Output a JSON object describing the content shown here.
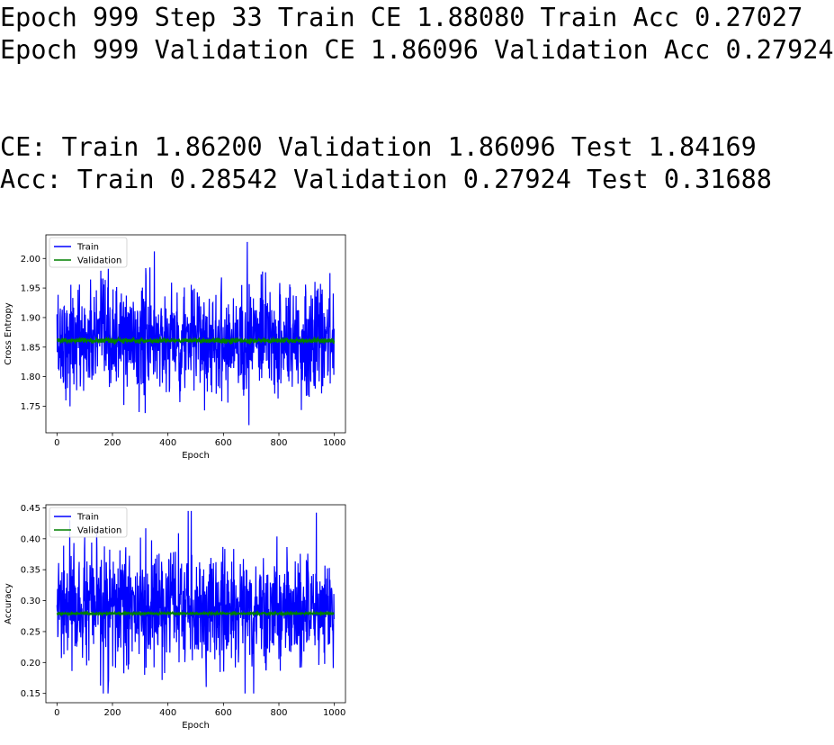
{
  "log": {
    "line1": "Epoch 999 Step 33 Train CE 1.88080 Train Acc 0.27027",
    "line2": "Epoch 999 Validation CE 1.86096 Validation Acc 0.27924",
    "line3": "CE: Train 1.86200 Validation 1.86096 Test 1.84169",
    "line4": "Acc: Train 0.28542 Validation 0.27924 Test 0.31688"
  },
  "chart_data": [
    {
      "type": "line",
      "xlabel": "Epoch",
      "ylabel": "Cross Entropy",
      "xlim": [
        -40,
        1040
      ],
      "ylim": [
        1.705,
        2.04
      ],
      "xticks": [
        0,
        200,
        400,
        600,
        800,
        1000
      ],
      "yticks": [
        1.75,
        1.8,
        1.85,
        1.9,
        1.95,
        2.0
      ],
      "ytick_labels": [
        "1.75",
        "1.80",
        "1.85",
        "1.90",
        "1.95",
        "2.00"
      ],
      "legend": "top-left",
      "n_points": 1000,
      "series": [
        {
          "name": "Train",
          "color": "#0000ff",
          "mean": 1.862,
          "spread": 0.045,
          "min": 1.718,
          "max": 2.028,
          "last": 1.8808,
          "extremes": [
            [
              686,
              2.028
            ],
            [
              692,
              1.718
            ],
            [
              351,
              2.012
            ],
            [
              296,
              1.74
            ]
          ]
        },
        {
          "name": "Validation",
          "color": "#008000",
          "mean": 1.861,
          "spread": 0.002,
          "last": 1.86096
        }
      ]
    },
    {
      "type": "line",
      "xlabel": "Epoch",
      "ylabel": "Accuracy",
      "xlim": [
        -40,
        1040
      ],
      "ylim": [
        0.135,
        0.455
      ],
      "xticks": [
        0,
        200,
        400,
        600,
        800,
        1000
      ],
      "yticks": [
        0.15,
        0.2,
        0.25,
        0.3,
        0.35,
        0.4,
        0.45
      ],
      "ytick_labels": [
        "0.15",
        "0.20",
        "0.25",
        "0.30",
        "0.35",
        "0.40",
        "0.45"
      ],
      "legend": "top-left",
      "n_points": 1000,
      "series": [
        {
          "name": "Train",
          "color": "#0000ff",
          "mean": 0.285,
          "spread": 0.045,
          "min": 0.15,
          "max": 0.445,
          "last": 0.27027,
          "extremes": [
            [
              484,
              0.445
            ],
            [
              709,
              0.15
            ],
            [
              167,
              0.15
            ],
            [
              46,
              0.43
            ]
          ]
        },
        {
          "name": "Validation",
          "color": "#008000",
          "mean": 0.2792,
          "spread": 0.0008,
          "last": 0.27924
        }
      ]
    }
  ]
}
